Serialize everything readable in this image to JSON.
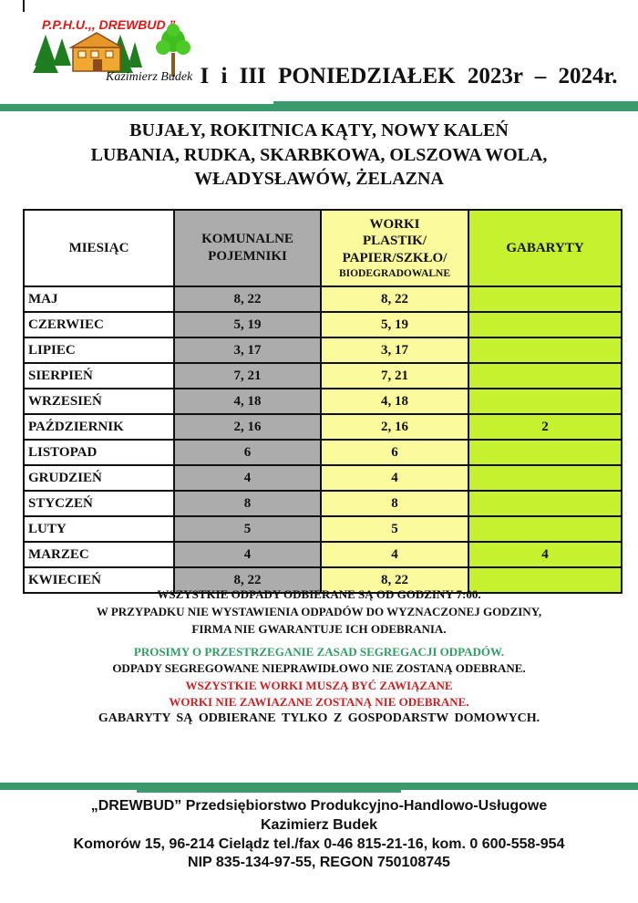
{
  "logo": {
    "company_short": "P.P.H.U.,, DREWBUD ”",
    "owner_script": "Kazimierz Budek",
    "red": "#e01818",
    "pine_green": "#1e7d1e",
    "house_orange": "#f0a830",
    "roof_brown": "#8a4a1a",
    "tree_green": "#3fbf1f",
    "trunk_brown": "#8a5a22"
  },
  "header": {
    "title": "I i III  PONIEDZIAŁEK  2023r – 2024r."
  },
  "localities": {
    "line1": "BUJAŁY, ROKITNICA KĄTY, NOWY KALEŃ",
    "line2": "LUBANIA, RUDKA, SKARBKOWA, OLSZOWA WOLA,",
    "line3": "WŁADYSŁAWÓW, ŻELAZNA"
  },
  "accent": {
    "bar_green": "#3a9a6b"
  },
  "table": {
    "headers": {
      "month": "MIESIĄC",
      "komunalne": "KOMUNALNE POJEMNIKI",
      "worki_main": "WORKI\nPLASTIK/\nPAPIER/SZKŁO/",
      "worki_small": "BIODEGRADOWALNE",
      "gabaryty": "GABARYTY"
    },
    "colors": {
      "month_bg": "#ffffff",
      "komunalne_bg": "#acacac",
      "worki_bg": "#fbfb9d",
      "gabaryty_bg": "#c6f12f"
    },
    "rows": [
      {
        "month": "MAJ",
        "komunalne": "8, 22",
        "worki": "8, 22",
        "gabaryty": ""
      },
      {
        "month": "CZERWIEC",
        "komunalne": "5, 19",
        "worki": "5, 19",
        "gabaryty": ""
      },
      {
        "month": "LIPIEC",
        "komunalne": "3, 17",
        "worki": "3, 17",
        "gabaryty": ""
      },
      {
        "month": "SIERPIEŃ",
        "komunalne": "7, 21",
        "worki": "7, 21",
        "gabaryty": ""
      },
      {
        "month": "WRZESIEŃ",
        "komunalne": "4, 18",
        "worki": "4, 18",
        "gabaryty": ""
      },
      {
        "month": "PAŹDZIERNIK",
        "komunalne": "2, 16",
        "worki": "2, 16",
        "gabaryty": "2"
      },
      {
        "month": "LISTOPAD",
        "komunalne": "6",
        "worki": "6",
        "gabaryty": ""
      },
      {
        "month": "GRUDZIEŃ",
        "komunalne": "4",
        "worki": "4",
        "gabaryty": ""
      },
      {
        "month": "STYCZEŃ",
        "komunalne": "8",
        "worki": "8",
        "gabaryty": ""
      },
      {
        "month": "LUTY",
        "komunalne": "5",
        "worki": "5",
        "gabaryty": ""
      },
      {
        "month": "MARZEC",
        "komunalne": "4",
        "worki": "4",
        "gabaryty": "4"
      },
      {
        "month": "KWIECIEŃ",
        "komunalne": "8, 22",
        "worki": "8, 22",
        "gabaryty": ""
      }
    ]
  },
  "notes_pickup": {
    "line1": "WSZYSTKIE ODPADY ODBIERANE SĄ OD GODZINY 7:00.",
    "line2": "W PRZYPADKU NIE WYSTAWIENIA ODPADÓW DO WYZNACZONEJ GODZINY,",
    "line3": "FIRMA NIE GWARANTUJE ICH ODEBRANIA."
  },
  "notes_segregation": {
    "green_line": "PROSIMY O PRZESTRZEGANIE ZASAD SEGREGACJI ODPADÓW.",
    "black_line": "ODPADY SEGREGOWANE NIEPRAWIDŁOWO NIE ZOSTANĄ ODEBRANE.",
    "red_line1": "WSZYSTKIE WORKI MUSZĄ BYĆ ZAWIĄZANE",
    "red_line2": "WORKI NIE ZAWIAZANE  ZOSTANĄ  NIE ODEBRANE.",
    "green_color": "#2e9e63",
    "red_color": "#cf2020"
  },
  "notes_gabaryty": "GABARYTY  SĄ ODBIERANE TYLKO Z GOSPODARSTW DOMOWYCH.",
  "footer": {
    "lines": [
      "„DREWBUD” Przedsiębiorstwo Produkcyjno-Handlowo-Usługowe",
      "Kazimierz Budek",
      "Komorów 15, 96-214 Cielądz tel./fax 0-46 815-21-16, kom. 0 600-558-954",
      "NIP 835-134-97-55, REGON 750108745"
    ]
  }
}
